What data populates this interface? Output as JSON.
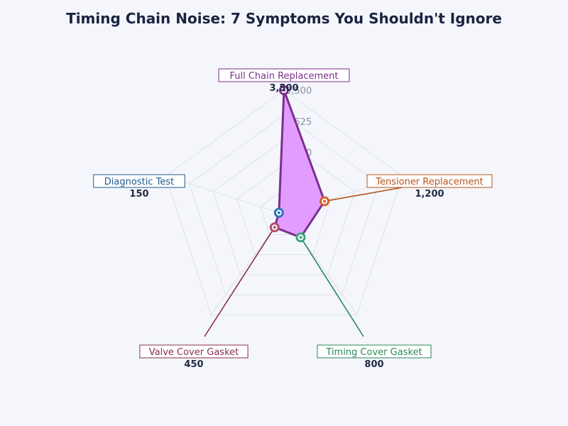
{
  "chart_data": {
    "type": "radar",
    "title": "Timing Chain Noise: 7 Symptoms You Shouldn't Ignore",
    "categories": [
      "Full Chain Replacement",
      "Tensioner Replacement",
      "Timing Cover Gasket",
      "Valve Cover Gasket",
      "Diagnostic Test"
    ],
    "values": [
      3500,
      1200,
      800,
      450,
      150
    ],
    "value_labels": [
      "3,500",
      "1,200",
      "800",
      "450",
      "150"
    ],
    "range": [
      0,
      3500
    ],
    "tick_labels": [
      "0",
      "1,750",
      "2,625",
      "3,500"
    ],
    "grid": true,
    "series_fill": "#e29cff",
    "series_stroke": "#7b2e8e",
    "category_colors": [
      "#7b2e8e",
      "#b5541a",
      "#2a8a5a",
      "#8a2d52",
      "#1f5a8c"
    ],
    "marker_colors": [
      "#7b2e8e",
      "#d2622a",
      "#3aa57a",
      "#b54a72",
      "#2f73b6"
    ]
  }
}
